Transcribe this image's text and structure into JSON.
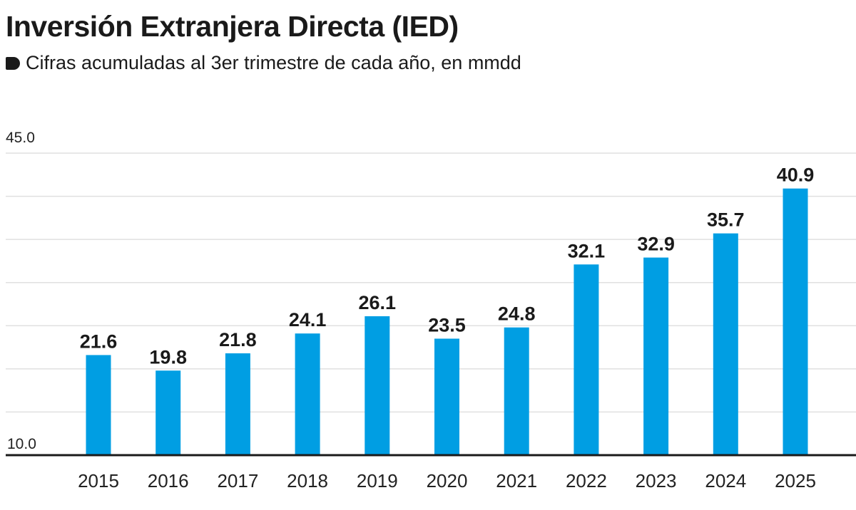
{
  "header": {
    "title": "Inversión Extranjera Directa (IED)",
    "subtitle": "Cifras acumuladas al 3er trimestre de cada año, en mmdd",
    "bullet_icon": "bullet-icon"
  },
  "colors": {
    "bar": "#009ee3",
    "grid": "#e0e0e0",
    "axis": "#1a1a1a",
    "text": "#1a1a1a"
  },
  "chart_data": {
    "type": "bar",
    "title": "Inversión Extranjera Directa (IED)",
    "subtitle": "Cifras acumuladas al 3er trimestre de cada año, en mmdd",
    "xlabel": "",
    "ylabel": "",
    "categories": [
      "2015",
      "2016",
      "2017",
      "2018",
      "2019",
      "2020",
      "2021",
      "2022",
      "2023",
      "2024",
      "2025"
    ],
    "values": [
      21.6,
      19.8,
      21.8,
      24.1,
      26.1,
      23.5,
      24.8,
      32.1,
      32.9,
      35.7,
      40.9
    ],
    "data_labels": [
      "21.6",
      "19.8",
      "21.8",
      "24.1",
      "26.1",
      "23.5",
      "24.8",
      "32.1",
      "32.9",
      "35.7",
      "40.9"
    ],
    "ylim": [
      10.0,
      45.0
    ],
    "y_tick_labels": [
      "10.0",
      "45.0"
    ],
    "gridlines": [
      15,
      20,
      25,
      30,
      35,
      40,
      45
    ],
    "grid": true,
    "legend": "none"
  }
}
